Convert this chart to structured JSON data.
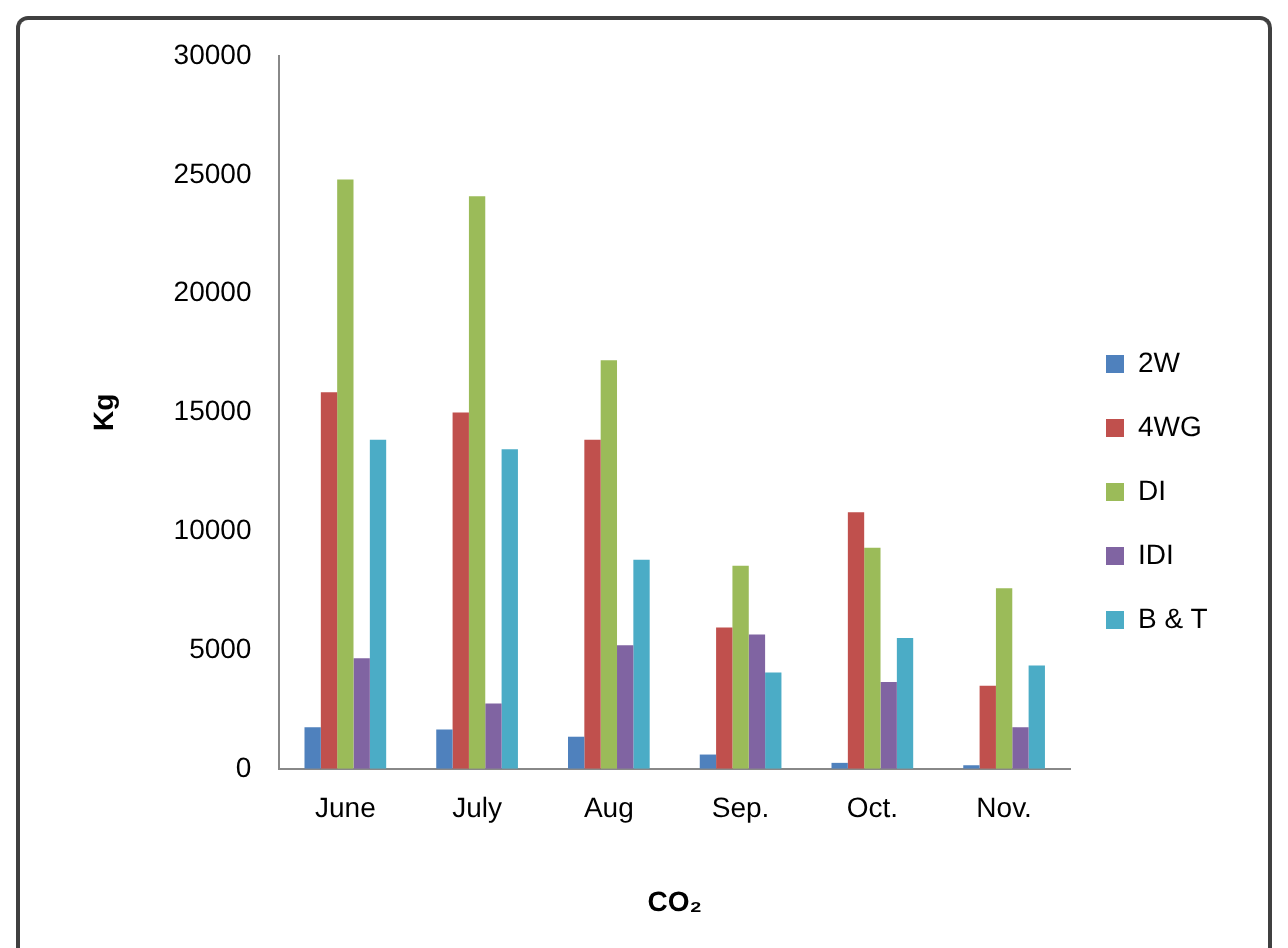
{
  "chart_data": {
    "type": "bar",
    "xlabel": "CO₂",
    "ylabel": "Kg",
    "categories": [
      "June",
      "July",
      "Aug",
      "Sep.",
      "Oct.",
      "Nov."
    ],
    "series": [
      {
        "name": "2W",
        "color": "#4f81bd",
        "values": [
          1750,
          1650,
          1350,
          600,
          250,
          150
        ]
      },
      {
        "name": "4WG",
        "color": "#c0504d",
        "values": [
          15850,
          15000,
          13850,
          5950,
          10800,
          3500
        ]
      },
      {
        "name": "DI",
        "color": "#9bbb59",
        "values": [
          24800,
          24100,
          17200,
          8550,
          9300,
          7600
        ]
      },
      {
        "name": "IDI",
        "color": "#8064a2",
        "values": [
          4650,
          2750,
          5200,
          5650,
          3650,
          1750
        ]
      },
      {
        "name": "B & T",
        "color": "#4bacc6",
        "values": [
          13850,
          13450,
          8800,
          4050,
          5500,
          4350
        ]
      }
    ],
    "ylim": [
      0,
      30000
    ],
    "yticks": [
      0,
      5000,
      10000,
      15000,
      20000,
      25000,
      30000
    ],
    "grid": false,
    "legend": "right"
  }
}
